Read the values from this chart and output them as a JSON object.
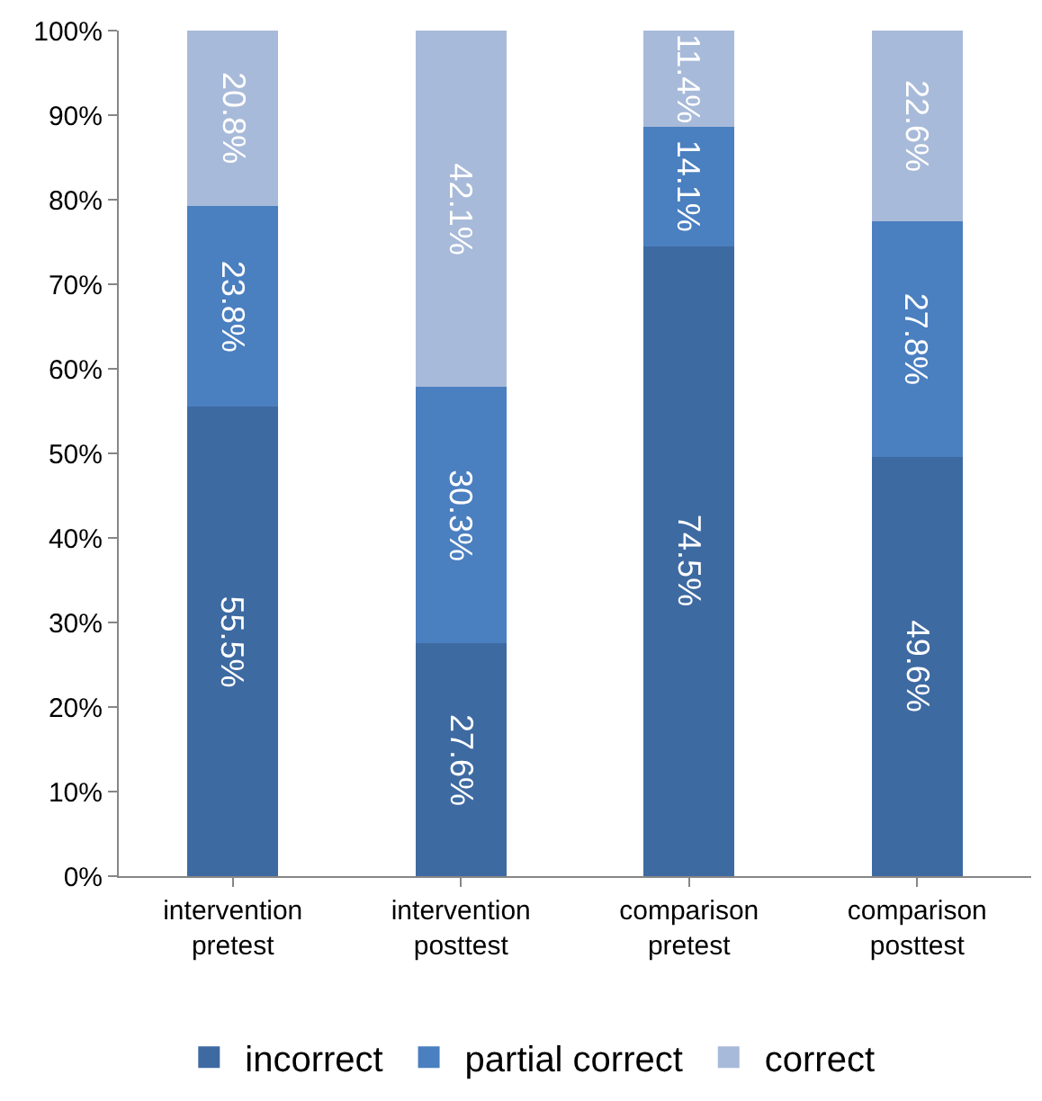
{
  "chart_data": {
    "type": "bar",
    "stacked": true,
    "categories": [
      "intervention\npretest",
      "intervention\nposttest",
      "comparison\npretest",
      "comparison\nposttest"
    ],
    "series": [
      {
        "name": "incorrect",
        "color": "#3e6aa2",
        "values": [
          55.5,
          27.6,
          74.5,
          49.6
        ],
        "value_labels": [
          "55.5%",
          "27.6%",
          "74.5%",
          "49.6%"
        ]
      },
      {
        "name": "partial correct",
        "color": "#4a7fc0",
        "values": [
          23.8,
          30.3,
          14.1,
          27.8
        ],
        "value_labels": [
          "23.8%",
          "30.3%",
          "14.1%",
          "27.8%"
        ]
      },
      {
        "name": "correct",
        "color": "#a8bad9",
        "values": [
          20.8,
          42.1,
          11.4,
          22.6
        ],
        "value_labels": [
          "20.8%",
          "42.1%",
          "11.4%",
          "22.6%"
        ]
      }
    ],
    "ylim": [
      0,
      100
    ],
    "yticks": [
      {
        "value": 0,
        "label": "0%"
      },
      {
        "value": 10,
        "label": "10%"
      },
      {
        "value": 20,
        "label": "20%"
      },
      {
        "value": 30,
        "label": "30%"
      },
      {
        "value": 40,
        "label": "40%"
      },
      {
        "value": 50,
        "label": "50%"
      },
      {
        "value": 60,
        "label": "60%"
      },
      {
        "value": 70,
        "label": "70%"
      },
      {
        "value": 80,
        "label": "80%"
      },
      {
        "value": 90,
        "label": "90%"
      },
      {
        "value": 100,
        "label": "100%"
      }
    ],
    "grid": false,
    "legend": "bottom"
  }
}
